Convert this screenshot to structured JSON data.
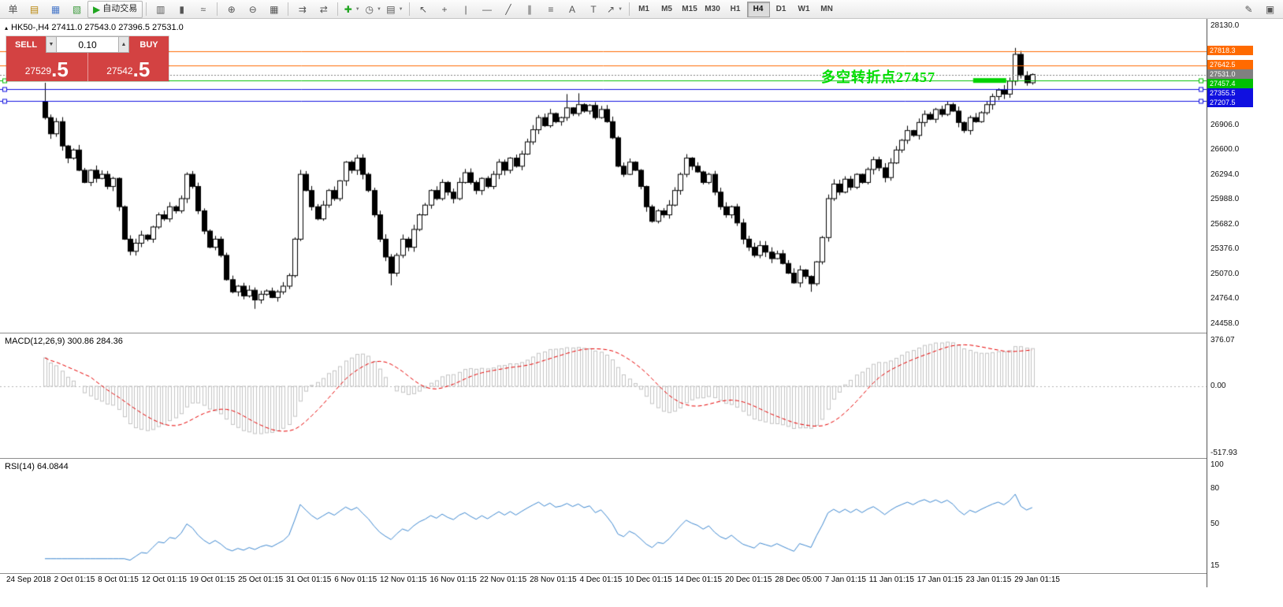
{
  "toolbar": {
    "timeframes": [
      "M1",
      "M5",
      "M15",
      "M30",
      "H1",
      "H4",
      "D1",
      "W1",
      "MN"
    ],
    "active_timeframe": "H4",
    "items": [
      {
        "type": "icon",
        "name": "new-order-button",
        "glyph": "单"
      },
      {
        "type": "icon",
        "name": "market-watch-icon",
        "glyph": "▤",
        "glyph_color": "#b8860b"
      },
      {
        "type": "icon",
        "name": "data-window-icon",
        "glyph": "▦",
        "glyph_color": "#4a79c9"
      },
      {
        "type": "icon",
        "name": "navigator-icon",
        "glyph": "▧",
        "glyph_color": "#3f9b3f"
      },
      {
        "type": "icon",
        "name": "autotrading-button",
        "glyph": "▶",
        "glyph_color": "#1fa51f",
        "label": "自动交易",
        "framed": true
      },
      {
        "type": "sep"
      },
      {
        "type": "icon",
        "name": "bar-chart-icon",
        "glyph": "▥"
      },
      {
        "type": "icon",
        "name": "candlestick-chart-icon",
        "glyph": "▮"
      },
      {
        "type": "icon",
        "name": "line-chart-icon",
        "glyph": "≈"
      },
      {
        "type": "sep"
      },
      {
        "type": "icon",
        "name": "zoom-in-icon",
        "glyph": "⊕"
      },
      {
        "type": "icon",
        "name": "zoom-out-icon",
        "glyph": "⊖"
      },
      {
        "type": "icon",
        "name": "tile-windows-icon",
        "glyph": "▦"
      },
      {
        "type": "sep"
      },
      {
        "type": "icon",
        "name": "auto-scroll-icon",
        "glyph": "⇉"
      },
      {
        "type": "icon",
        "name": "chart-shift-icon",
        "glyph": "⇄"
      },
      {
        "type": "sep"
      },
      {
        "type": "icon",
        "name": "indicators-icon",
        "glyph": "✚",
        "glyph_color": "#1fa51f",
        "dd": true
      },
      {
        "type": "icon",
        "name": "periods-icon",
        "glyph": "◷",
        "dd": true
      },
      {
        "type": "icon",
        "name": "templates-icon",
        "glyph": "▤",
        "dd": true
      },
      {
        "type": "sep"
      },
      {
        "type": "icon",
        "name": "cursor-icon",
        "glyph": "↖"
      },
      {
        "type": "icon",
        "name": "crosshair-icon",
        "glyph": "+"
      },
      {
        "type": "icon",
        "name": "vertical-line-icon",
        "glyph": "|"
      },
      {
        "type": "icon",
        "name": "horizontal-line-icon",
        "glyph": "—"
      },
      {
        "type": "icon",
        "name": "trendline-icon",
        "glyph": "╱"
      },
      {
        "type": "icon",
        "name": "channel-icon",
        "glyph": "∥"
      },
      {
        "type": "icon",
        "name": "fibonacci-icon",
        "glyph": "≡"
      },
      {
        "type": "icon",
        "name": "text-icon",
        "glyph": "A"
      },
      {
        "type": "icon",
        "name": "label-icon",
        "glyph": "T"
      },
      {
        "type": "icon",
        "name": "arrows-icon",
        "glyph": "↗",
        "dd": true
      },
      {
        "type": "sep"
      },
      {
        "type": "timeframes"
      },
      {
        "type": "spacer"
      },
      {
        "type": "icon",
        "name": "compose-icon",
        "glyph": "✎"
      },
      {
        "type": "icon",
        "name": "workspace-icon",
        "glyph": "▣"
      }
    ]
  },
  "trade_panel": {
    "sell_label": "SELL",
    "buy_label": "BUY",
    "volume": "0.10",
    "vol_down_glyph": "▼",
    "vol_up_glyph": "▲",
    "sell_price_main": "27529",
    "sell_price_big": ".5",
    "buy_price_main": "27542",
    "buy_price_big": ".5",
    "panel_color": "#d34242"
  },
  "chart": {
    "header": "HK50-,H4 27411.0 27543.0 27396.5 27531.0",
    "symbol": "HK50-",
    "period": "H4",
    "marker_glyph": "▴",
    "annotation": {
      "text": "多空转折点27457",
      "color": "#00dd00"
    },
    "price_axis": {
      "labels": [
        "28130.0",
        "26906.0",
        "26600.0",
        "26294.0",
        "25988.0",
        "25682.0",
        "25376.0",
        "25070.0",
        "24764.0",
        "24458.0"
      ]
    },
    "hlines": [
      {
        "price": 27818.3,
        "label": "27818.3",
        "color": "#ff6a00",
        "style": "solid",
        "handles": false
      },
      {
        "price": 27642.5,
        "label": "27642.5",
        "color": "#ff6a00",
        "style": "solid",
        "handles": false
      },
      {
        "price": 27531.0,
        "label": "27531.0",
        "color": "#808080",
        "style": "dotted",
        "handles": false
      },
      {
        "price": 27457.4,
        "label": "27457.4",
        "color": "#00c000",
        "style": "solid",
        "handles": true
      },
      {
        "price": 27355.5,
        "label": "27355.5",
        "color": "#1010e0",
        "style": "solid",
        "handles": true
      },
      {
        "price": 27207.5,
        "label": "27207.5",
        "color": "#1010e0",
        "style": "solid",
        "handles": true
      }
    ],
    "green_marker": {
      "price": 27457.4,
      "start_index": 164,
      "end_index": 169,
      "color": "#00d200"
    }
  },
  "chart_data": {
    "type": "candlestick",
    "symbol": "HK50-",
    "timeframe": "H4",
    "ohlc_current": {
      "open": 27411.0,
      "high": 27543.0,
      "low": 27396.5,
      "close": 27531.0
    },
    "y_range": [
      24458.0,
      28130.0
    ],
    "first_open": 27200,
    "closes": [
      27000,
      26800,
      26950,
      26650,
      26500,
      26600,
      26350,
      26200,
      26350,
      26250,
      26300,
      26150,
      26250,
      25900,
      25500,
      25350,
      25450,
      25550,
      25500,
      25650,
      25800,
      25750,
      25900,
      25850,
      26000,
      26300,
      26150,
      25850,
      25600,
      25400,
      25500,
      25300,
      25000,
      24850,
      24920,
      24800,
      24870,
      24750,
      24820,
      24860,
      24780,
      24850,
      24920,
      25050,
      25500,
      26300,
      26100,
      25900,
      25750,
      25920,
      26100,
      26000,
      26220,
      26450,
      26350,
      26500,
      26300,
      26100,
      25800,
      25500,
      25280,
      25080,
      25300,
      25500,
      25400,
      25620,
      25800,
      25920,
      26100,
      26000,
      26200,
      26080,
      26000,
      26200,
      26320,
      26200,
      26100,
      26250,
      26150,
      26300,
      26450,
      26350,
      26500,
      26400,
      26550,
      26700,
      26850,
      27000,
      26900,
      27050,
      26950,
      27000,
      27120,
      27050,
      27160,
      27080,
      27150,
      27000,
      27100,
      26950,
      26750,
      26400,
      26300,
      26450,
      26350,
      26150,
      25900,
      25720,
      25850,
      25800,
      25920,
      26100,
      26300,
      26500,
      26400,
      26330,
      26200,
      26300,
      26080,
      25900,
      25800,
      25900,
      25700,
      25500,
      25400,
      25300,
      25420,
      25340,
      25260,
      25320,
      25200,
      25080,
      24960,
      25120,
      25040,
      24950,
      25220,
      25520,
      26000,
      26180,
      26080,
      26240,
      26140,
      26300,
      26200,
      26360,
      26480,
      26380,
      26260,
      26440,
      26600,
      26720,
      26840,
      26780,
      26940,
      27040,
      26980,
      27100,
      27040,
      27160,
      27080,
      26940,
      26840,
      27000,
      26950,
      27060,
      27160,
      27260,
      27340,
      27290,
      27450,
      27780,
      27520,
      27430,
      27531
    ],
    "high_overrides": {
      "0": 27430,
      "92": 27290,
      "94": 27300,
      "171": 27860
    },
    "low_overrides": {
      "37": 24640,
      "61": 24930,
      "135": 24850
    }
  },
  "macd": {
    "header": "MACD(12,26,9) 300.86 284.36",
    "axis_labels": [
      "376.07",
      "0.00",
      "-517.93"
    ],
    "histogram_color": "#c3c3c3",
    "signal_color": "#e60000"
  },
  "rsi": {
    "header": "RSI(14) 64.0844",
    "axis_labels": [
      "100",
      "80",
      "50",
      "15"
    ],
    "line_color": "#3d87cf",
    "current": "64.0844"
  },
  "time_axis": [
    "24 Sep 2018",
    "2 Oct 01:15",
    "8 Oct 01:15",
    "12 Oct 01:15",
    "19 Oct 01:15",
    "25 Oct 01:15",
    "31 Oct 01:15",
    "6 Nov 01:15",
    "12 Nov 01:15",
    "16 Nov 01:15",
    "22 Nov 01:15",
    "28 Nov 01:15",
    "4 Dec 01:15",
    "10 Dec 01:15",
    "14 Dec 01:15",
    "20 Dec 01:15",
    "28 Dec 05:00",
    "7 Jan 01:15",
    "11 Jan 01:15",
    "17 Jan 01:15",
    "23 Jan 01:15",
    "29 Jan 01:15"
  ]
}
